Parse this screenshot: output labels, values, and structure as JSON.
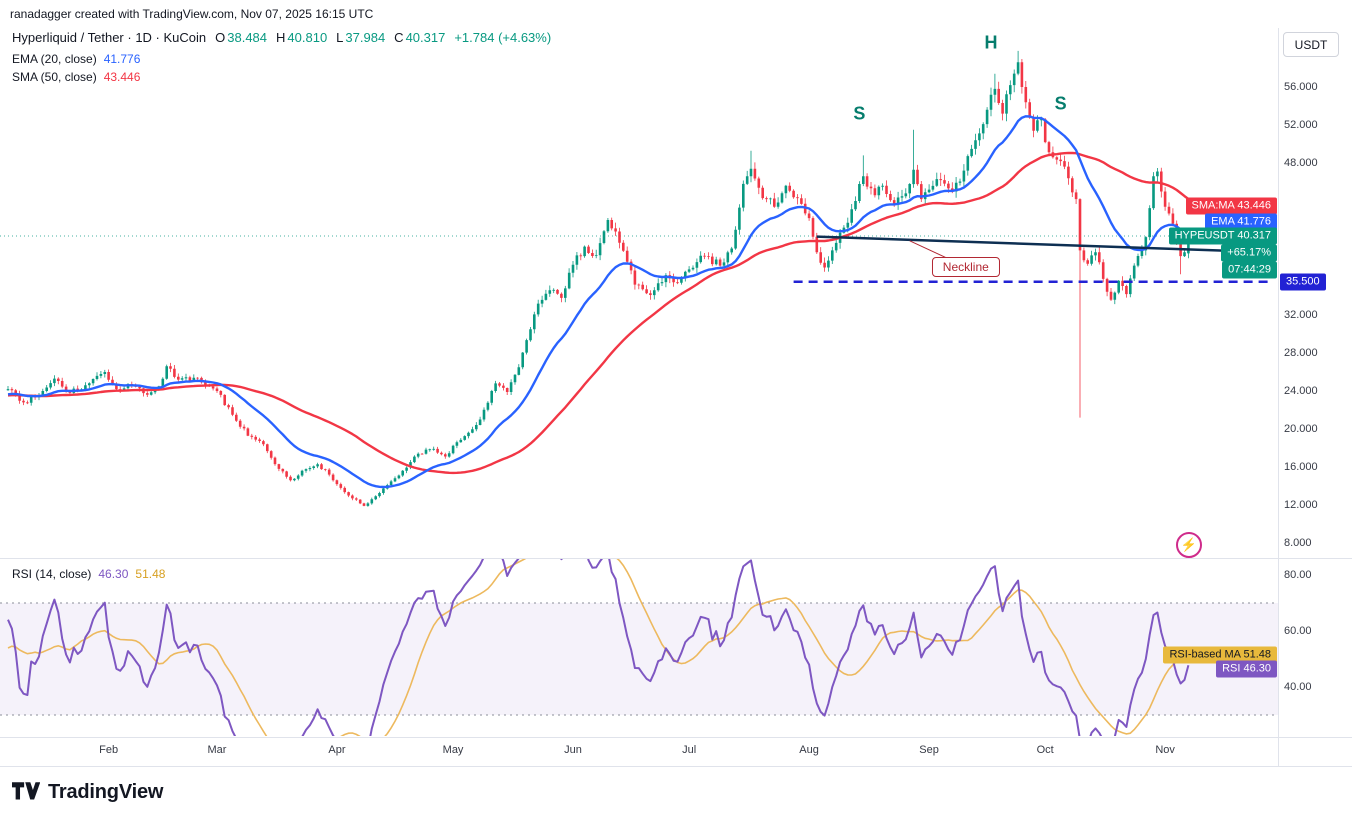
{
  "attribution": "ranadagger created with TradingView.com, Nov 07, 2025 16:15 UTC",
  "header": {
    "title": "Hyperliquid / Tether · 1D · KuCoin",
    "ohlc": [
      {
        "k": "O",
        "v": "38.484"
      },
      {
        "k": "H",
        "v": "40.810"
      },
      {
        "k": "L",
        "v": "37.984"
      },
      {
        "k": "C",
        "v": "40.317"
      }
    ],
    "change": "+1.784 (+4.63%)",
    "ema_label": "EMA (20, close)",
    "ema_value": "41.776",
    "sma_label": "SMA (50, close)",
    "sma_value": "43.446"
  },
  "rsi_header": {
    "label": "RSI (14, close)",
    "value": "46.30",
    "ma_value": "51.48"
  },
  "axis": {
    "currency_button": "USDT",
    "price_ticks": [
      56,
      52,
      48,
      32,
      28,
      24,
      20,
      16,
      12,
      8
    ],
    "rsi_ticks": [
      "80.00",
      "60.00",
      "40.00"
    ],
    "months": [
      {
        "label": "Feb",
        "day": 26
      },
      {
        "label": "Mar",
        "day": 54
      },
      {
        "label": "Apr",
        "day": 85
      },
      {
        "label": "May",
        "day": 115
      },
      {
        "label": "Jun",
        "day": 146
      },
      {
        "label": "Jul",
        "day": 176
      },
      {
        "label": "Aug",
        "day": 207
      },
      {
        "label": "Sep",
        "day": 238
      },
      {
        "label": "Oct",
        "day": 268
      },
      {
        "label": "Nov",
        "day": 299
      }
    ]
  },
  "price_tags": [
    {
      "name": "sma-ma-tag",
      "text": "SMA:MA 43.446",
      "price": 43.446,
      "bg": "#f23645",
      "fg": "#ffffff"
    },
    {
      "name": "ema-tag",
      "text": "EMA 41.776",
      "price": 41.776,
      "bg": "#2962ff",
      "fg": "#ffffff"
    },
    {
      "name": "symbol-price-tag",
      "text": "HYPEUSDT 40.317",
      "price": 40.317,
      "bg": "#089981",
      "fg": "#ffffff"
    },
    {
      "name": "change-percent-tag",
      "text": "+65.17%",
      "price": 38.53,
      "bg": "#089981",
      "fg": "#ffffff"
    },
    {
      "name": "bar-countdown-tag",
      "text": "07:44:29",
      "price": 36.74,
      "bg": "#089981",
      "fg": "#ffffff"
    },
    {
      "name": "support-price-tag",
      "text": "35.500",
      "price": 35.5,
      "bg": "#2222d4",
      "fg": "#ffffff",
      "on_axis": true
    }
  ],
  "rsi_tags": [
    {
      "name": "rsi-ma-tag",
      "text": "RSI-based MA 51.48",
      "value": 51.48,
      "bg": "#e8b93c",
      "fg": "#131722"
    },
    {
      "name": "rsi-tag",
      "text": "RSI 46.30",
      "value": 46.3,
      "bg": "#7e57c2",
      "fg": "#ffffff"
    }
  ],
  "annotations": {
    "shoulders": [
      {
        "label": "S",
        "day": 220,
        "price": 53.2
      },
      {
        "label": "H",
        "day": 254,
        "price": 60.6
      },
      {
        "label": "S",
        "day": 272,
        "price": 54.2
      }
    ],
    "callout": {
      "text": "Neckline",
      "day": 247.5,
      "price": 37.1,
      "pointer_day": 233
    },
    "neckline": {
      "p1": {
        "day": 209,
        "price": 40.25
      },
      "p2": {
        "day": 316,
        "price": 38.75
      }
    },
    "support_line": {
      "day1": 203,
      "day2": 327,
      "price": 35.5
    }
  },
  "branding": {
    "name": "TradingView"
  },
  "colors": {
    "up": "#089981",
    "down": "#f23645",
    "ema": "#2962ff",
    "sma": "#f23645",
    "rsi": "#7e57c2",
    "rsi_ma": "#edb95e",
    "neckline": "#0e2f52",
    "support": "#2222d4",
    "separator": "#e0e3eb",
    "band_fill": "rgba(126,87,194,0.08)"
  },
  "chart_data": {
    "type": "candlestick",
    "title": "Hyperliquid / Tether · 1D · KuCoin",
    "symbol": "HYPEUSDT",
    "exchange": "KuCoin",
    "interval": "1D",
    "last_bar": {
      "open": 38.484,
      "high": 40.81,
      "low": 37.984,
      "close": 40.317,
      "change": 1.784,
      "change_pct": 4.63
    },
    "price_axis": {
      "min": 6.5,
      "max": 62,
      "unit": "USDT",
      "ticks": [
        56,
        52,
        48,
        32,
        28,
        24,
        20,
        16,
        12,
        8
      ]
    },
    "time_axis": {
      "start": "2025-01-06",
      "end": "2025-11-07",
      "month_labels": [
        "Feb",
        "Mar",
        "Apr",
        "May",
        "Jun",
        "Jul",
        "Aug",
        "Sep",
        "Oct",
        "Nov"
      ]
    },
    "overlays": [
      {
        "name": "EMA",
        "params": "20, close",
        "last": 41.776,
        "color": "#2962ff"
      },
      {
        "name": "SMA",
        "params": "50, close",
        "last": 43.446,
        "color": "#f23645"
      }
    ],
    "pattern": {
      "name": "head-and-shoulders",
      "labels": [
        "S",
        "H",
        "S"
      ],
      "neckline_prices": [
        40.25,
        38.75
      ],
      "support_price": 35.5
    },
    "rsi": {
      "name": "RSI",
      "params": "14, close",
      "last": 46.3,
      "ma_last": 51.48,
      "ticks": [
        80,
        60,
        40
      ],
      "band": [
        30,
        70
      ]
    },
    "price_anchors": [
      [
        -55,
        22.5
      ],
      [
        -42,
        24.2
      ],
      [
        -30,
        22.8
      ],
      [
        -18,
        23.8
      ],
      [
        -8,
        23.2
      ],
      [
        0,
        24.2
      ],
      [
        4,
        22.8
      ],
      [
        8,
        23.5
      ],
      [
        12,
        25.3
      ],
      [
        16,
        23.8
      ],
      [
        20,
        24.6
      ],
      [
        25,
        26.0
      ],
      [
        28,
        24.2
      ],
      [
        32,
        24.6
      ],
      [
        36,
        23.6
      ],
      [
        39,
        24.5
      ],
      [
        41,
        26.6
      ],
      [
        44,
        25.2
      ],
      [
        48,
        25.4
      ],
      [
        51,
        24.6
      ],
      [
        54,
        24.0
      ],
      [
        58,
        21.5
      ],
      [
        62,
        19.3
      ],
      [
        66,
        18.4
      ],
      [
        70,
        15.8
      ],
      [
        73,
        14.6
      ],
      [
        76,
        15.6
      ],
      [
        80,
        16.3
      ],
      [
        83,
        15.2
      ],
      [
        85,
        14.2
      ],
      [
        88,
        13.0
      ],
      [
        92,
        11.9
      ],
      [
        94,
        12.6
      ],
      [
        98,
        14.1
      ],
      [
        102,
        15.6
      ],
      [
        106,
        17.4
      ],
      [
        110,
        17.9
      ],
      [
        113,
        17.1
      ],
      [
        116,
        18.6
      ],
      [
        119,
        19.6
      ],
      [
        122,
        21.0
      ],
      [
        126,
        24.8
      ],
      [
        129,
        23.9
      ],
      [
        132,
        26.5
      ],
      [
        135,
        30.5
      ],
      [
        137,
        33.2
      ],
      [
        140,
        34.6
      ],
      [
        143,
        33.8
      ],
      [
        146,
        37.3
      ],
      [
        149,
        39.2
      ],
      [
        152,
        38.3
      ],
      [
        155,
        42.0
      ],
      [
        158,
        39.6
      ],
      [
        162,
        35.2
      ],
      [
        166,
        34.1
      ],
      [
        170,
        36.2
      ],
      [
        173,
        35.4
      ],
      [
        176,
        36.8
      ],
      [
        180,
        38.2
      ],
      [
        184,
        37.2
      ],
      [
        187,
        39.0
      ],
      [
        190,
        45.8
      ],
      [
        192,
        47.4
      ],
      [
        194,
        45.4
      ],
      [
        196,
        44.2
      ],
      [
        198,
        43.4
      ],
      [
        201,
        45.6
      ],
      [
        204,
        44.3
      ],
      [
        207,
        42.2
      ],
      [
        209,
        38.6
      ],
      [
        211,
        37.0
      ],
      [
        213,
        38.8
      ],
      [
        216,
        41.2
      ],
      [
        219,
        44.0
      ],
      [
        221,
        46.6
      ],
      [
        224,
        44.6
      ],
      [
        226,
        45.6
      ],
      [
        229,
        43.6
      ],
      [
        232,
        44.8
      ],
      [
        234,
        47.3
      ],
      [
        236,
        44.2
      ],
      [
        238,
        45.2
      ],
      [
        241,
        46.2
      ],
      [
        244,
        45.0
      ],
      [
        247,
        47.2
      ],
      [
        250,
        50.4
      ],
      [
        253,
        53.6
      ],
      [
        255,
        55.8
      ],
      [
        257,
        53.2
      ],
      [
        259,
        56.2
      ],
      [
        261,
        58.6
      ],
      [
        263,
        54.4
      ],
      [
        265,
        51.4
      ],
      [
        267,
        52.6
      ],
      [
        268,
        50.2
      ],
      [
        270,
        48.6
      ],
      [
        272,
        48.2
      ],
      [
        274,
        46.4
      ],
      [
        276,
        44.2
      ],
      [
        277,
        38.8
      ],
      [
        279,
        37.4
      ],
      [
        281,
        38.6
      ],
      [
        283,
        35.8
      ],
      [
        285,
        33.6
      ],
      [
        287,
        35.6
      ],
      [
        289,
        34.2
      ],
      [
        291,
        37.2
      ],
      [
        293,
        38.8
      ],
      [
        294,
        40.2
      ],
      [
        296,
        46.6
      ],
      [
        297,
        47.1
      ],
      [
        298,
        45.0
      ],
      [
        299,
        43.4
      ],
      [
        301,
        41.6
      ],
      [
        302,
        39.6
      ],
      [
        303,
        38.2
      ],
      [
        304,
        38.6
      ],
      [
        305,
        40.317
      ]
    ],
    "candle_overrides": {
      "192": {
        "h": 49.3
      },
      "221": {
        "h": 48.8
      },
      "234": {
        "h": 51.5
      },
      "255": {
        "h": 57.4
      },
      "261": {
        "h": 59.8
      },
      "277": {
        "l": 21.2
      },
      "303": {
        "l": 36.3
      },
      "305": {
        "o": 38.484,
        "h": 40.81,
        "l": 37.984,
        "c": 40.317
      }
    }
  }
}
